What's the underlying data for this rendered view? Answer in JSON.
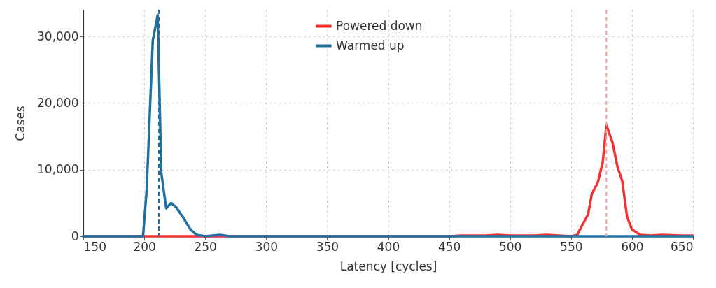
{
  "chart_data": {
    "type": "line",
    "xlabel": "Latency [cycles]",
    "ylabel": "Cases",
    "xlim": [
      150,
      650
    ],
    "ylim": [
      0,
      34000
    ],
    "xticks": [
      150,
      200,
      250,
      300,
      350,
      400,
      450,
      500,
      550,
      600,
      650
    ],
    "yticks": [
      0,
      {
        "value": 10000,
        "label": "10,000"
      },
      {
        "value": 20000,
        "label": "20,000"
      },
      {
        "value": 30000,
        "label": "30,000"
      }
    ],
    "grid": true,
    "legend": "top",
    "line_style": "solid",
    "marker": "none",
    "series": [
      {
        "name": "Powered down",
        "color": "#f03232",
        "x": [
          150,
          450,
          460,
          480,
          490,
          500,
          520,
          530,
          540,
          550,
          555,
          564,
          567,
          572,
          576,
          579,
          584,
          588,
          592,
          596,
          600,
          607,
          615,
          625,
          640,
          650
        ],
        "values": [
          0,
          0,
          100,
          100,
          200,
          100,
          100,
          200,
          100,
          0,
          200,
          3300,
          6300,
          8100,
          11100,
          16700,
          14100,
          10500,
          8300,
          2900,
          1000,
          200,
          100,
          200,
          100,
          100
        ]
      },
      {
        "name": "Warmed up",
        "color": "#1f6fa0",
        "x": [
          150,
          199,
          202,
          207,
          211,
          214,
          218,
          222,
          226,
          232,
          238,
          243,
          250,
          262,
          270,
          650
        ],
        "values": [
          0,
          0,
          7000,
          29400,
          33200,
          9500,
          4200,
          5000,
          4400,
          2800,
          1000,
          200,
          0,
          200,
          0,
          0
        ]
      }
    ],
    "ref_lines": [
      {
        "axis": "x",
        "value": 212,
        "color": "#1f6fa0",
        "line_style": "dashed"
      },
      {
        "axis": "x",
        "value": 579,
        "color": "#f5a0a0",
        "line_style": "dashed"
      }
    ]
  }
}
